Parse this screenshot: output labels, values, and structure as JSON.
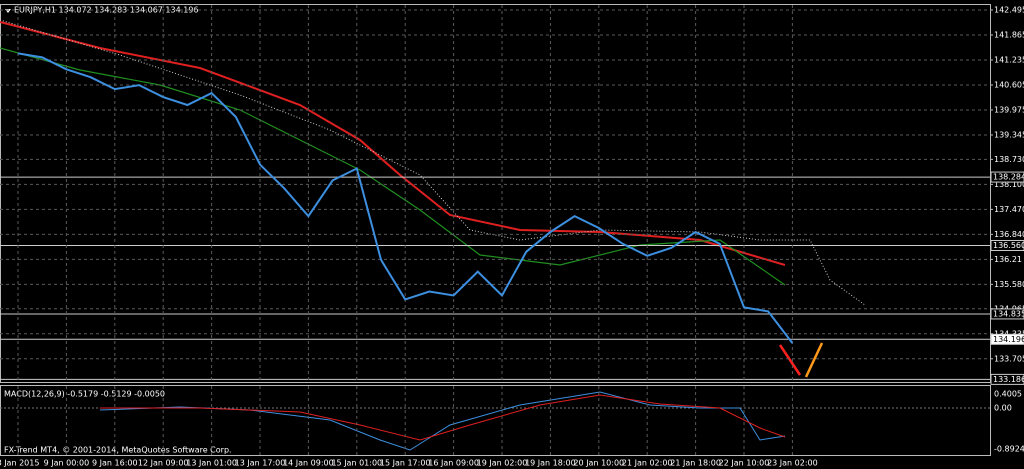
{
  "chart_data": {
    "type": "line",
    "title": "EURJPY,H1  134.072 134.283 134.067 134.196",
    "subtitle": "MACD(12,26,9) -0.5179 -0.5129 -0.0050",
    "annotations": [
      "FX-Trend MT4, © 2001-2014, MetaQuotes Software Corp."
    ],
    "categories": [
      "8 Jan 2015",
      null,
      "9 Jan 00:00",
      null,
      "9 Jan 16:00",
      null,
      "12 Jan 09:00",
      null,
      "13 Jan 01:00",
      null,
      "13 Jan 17:00",
      null,
      "14 Jan 09:00",
      null,
      "15 Jan 01:00",
      null,
      "15 Jan 17:00",
      null,
      "16 Jan 09:00",
      null,
      "19 Jan 02:00",
      null,
      "19 Jan 18:00",
      null,
      "20 Jan 10:00",
      null,
      "21 Jan 02:00",
      null,
      "21 Jan 18:00",
      null,
      "22 Jan 10:00",
      null,
      "23 Jan 02:00"
    ],
    "values": [
      141.4,
      141.3,
      141.0,
      140.8,
      140.5,
      140.6,
      140.3,
      140.1,
      140.4,
      139.8,
      138.6,
      138.0,
      137.3,
      138.2,
      138.5,
      136.2,
      135.2,
      135.4,
      135.3,
      135.9,
      135.3,
      136.4,
      136.9,
      137.3,
      137.0,
      136.6,
      136.3,
      136.5,
      136.9,
      136.6,
      135.0,
      134.9,
      134.1
    ],
    "color": "#3d8fe0",
    "ylim": [
      133.12,
      142.62
    ],
    "yticks": [
      142.495,
      141.865,
      141.235,
      140.605,
      139.975,
      139.345,
      {
        "value": 138.73,
        "label": "138.730"
      },
      {
        "value": 138.1,
        "label": "138.100"
      },
      {
        "value": 137.47,
        "label": "137.470"
      },
      {
        "value": 136.84,
        "label": "136.840"
      },
      136.21,
      {
        "value": 135.58,
        "label": "135.580"
      },
      134.965,
      134.335,
      133.705
    ],
    "price_lines": [
      138.284,
      {
        "value": 136.56,
        "label": "136.560"
      },
      134.835,
      134.196,
      133.186
    ],
    "macd_ticks": [
      "0.4005",
      "0.00",
      "-0.8924"
    ],
    "grid": true
  }
}
